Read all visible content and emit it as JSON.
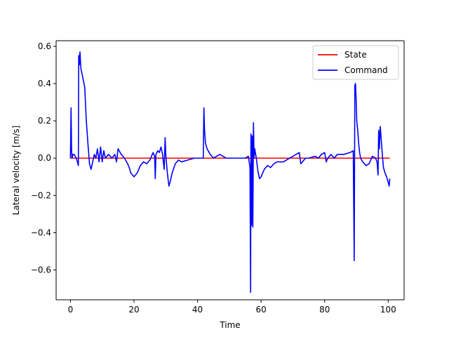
{
  "chart_data": {
    "type": "line",
    "title": "",
    "xlabel": "Time",
    "ylabel": "Lateral velocity [m/s]",
    "xlim": [
      -4.5,
      105
    ],
    "ylim": [
      -0.76,
      0.63
    ],
    "xticks": [
      0,
      20,
      40,
      60,
      80,
      100
    ],
    "yticks": [
      -0.6,
      -0.4,
      -0.2,
      0.0,
      0.2,
      0.4,
      0.6
    ],
    "xtick_labels": [
      "0",
      "20",
      "40",
      "60",
      "80",
      "100"
    ],
    "ytick_labels": [
      "−0.6",
      "−0.4",
      "−0.2",
      "0.0",
      "0.2",
      "0.4",
      "0.6"
    ],
    "grid": false,
    "legend_position": "top-right",
    "series": [
      {
        "name": "State",
        "color": "#ff0000",
        "x": [
          0,
          100.5
        ],
        "y": [
          0,
          0
        ]
      },
      {
        "name": "Command",
        "color": "#0000ff",
        "x": [
          0,
          0.2,
          0.35,
          0.5,
          0.8,
          1.2,
          1.8,
          2.2,
          2.5,
          2.6,
          2.8,
          3.0,
          3.3,
          3.8,
          4.5,
          5.0,
          5.5,
          6.0,
          6.5,
          7.0,
          7.5,
          8.0,
          8.5,
          9.0,
          9.5,
          10.0,
          10.5,
          11.0,
          12.0,
          13.0,
          14.0,
          14.5,
          15.0,
          16.0,
          17.0,
          18.0,
          18.5,
          19.0,
          19.5,
          20.0,
          21.0,
          22.0,
          23.0,
          24.0,
          25.0,
          26.0,
          26.5,
          26.7,
          26.9,
          27.5,
          28.0,
          28.5,
          29.0,
          29.5,
          29.8,
          30.0,
          30.5,
          31.0,
          31.5,
          32.0,
          33.0,
          34.0,
          35.0,
          37.0,
          39.0,
          41.0,
          41.8,
          42.0,
          42.2,
          42.5,
          43.0,
          44.0,
          45.0,
          46.0,
          47.0,
          49.0,
          51.0,
          53.0,
          55.0,
          56.0,
          56.5,
          56.7,
          56.8,
          57.0,
          57.2,
          57.4,
          57.6,
          57.8,
          58.0,
          58.5,
          59.0,
          59.5,
          60.0,
          61.0,
          62.0,
          63.0,
          64.0,
          65.0,
          67.0,
          69.0,
          70.0,
          71.0,
          72.0,
          72.5,
          73.0,
          74.0,
          75.0,
          77.0,
          78.0,
          79.0,
          80.0,
          80.5,
          81.0,
          82.0,
          83.0,
          84.0,
          86.0,
          88.0,
          89.0,
          89.3,
          89.5,
          89.7,
          89.9,
          90.1,
          90.4,
          90.7,
          91.0,
          91.3,
          92.0,
          93.0,
          94.0,
          95.0,
          96.0,
          96.5,
          96.8,
          97.0,
          97.2,
          97.5,
          97.8,
          98.1,
          98.5,
          99.0,
          99.5,
          100.0,
          100.3,
          100.5
        ],
        "y": [
          0,
          0.27,
          0.05,
          0,
          0.02,
          0.02,
          0,
          -0.02,
          -0.04,
          0.55,
          0.5,
          0.57,
          0.48,
          0.44,
          0.38,
          0.2,
          0.08,
          -0.03,
          -0.06,
          -0.02,
          0.02,
          0,
          0.05,
          -0.02,
          0.06,
          -0.02,
          0.04,
          0,
          0.02,
          0,
          0.02,
          -0.02,
          0.05,
          0.02,
          0,
          -0.03,
          -0.05,
          -0.08,
          -0.09,
          -0.1,
          -0.08,
          -0.04,
          -0.02,
          -0.03,
          -0.01,
          0.03,
          0.01,
          -0.11,
          0.02,
          0.04,
          0.03,
          0.06,
          0.02,
          -0.06,
          0.11,
          0.02,
          -0.08,
          -0.15,
          -0.12,
          -0.08,
          -0.03,
          -0.01,
          -0.02,
          -0.01,
          0,
          0,
          0,
          0.27,
          0.15,
          0.08,
          0.05,
          0.02,
          0,
          0.01,
          0.02,
          0,
          0,
          0,
          0,
          0.01,
          -0.05,
          -0.72,
          0.13,
          -0.36,
          0.12,
          -0.37,
          0.19,
          0.0,
          0.05,
          0.0,
          -0.07,
          -0.11,
          -0.1,
          -0.06,
          -0.04,
          -0.05,
          -0.03,
          -0.02,
          -0.02,
          0,
          0.01,
          0.02,
          0.03,
          -0.03,
          -0.02,
          0,
          0,
          0.01,
          0.0,
          0.02,
          0.03,
          -0.02,
          0.0,
          0.02,
          0.0,
          0.02,
          0.02,
          0.03,
          0.04,
          -0.55,
          0.39,
          0.4,
          0.32,
          0.2,
          0.15,
          0.08,
          0.03,
          0.0,
          -0.02,
          -0.04,
          -0.03,
          0.01,
          0.0,
          -0.02,
          -0.09,
          0.15,
          0.05,
          0.17,
          0.1,
          0.03,
          -0.05,
          -0.08,
          -0.1,
          -0.13,
          -0.15,
          -0.11
        ]
      }
    ]
  }
}
